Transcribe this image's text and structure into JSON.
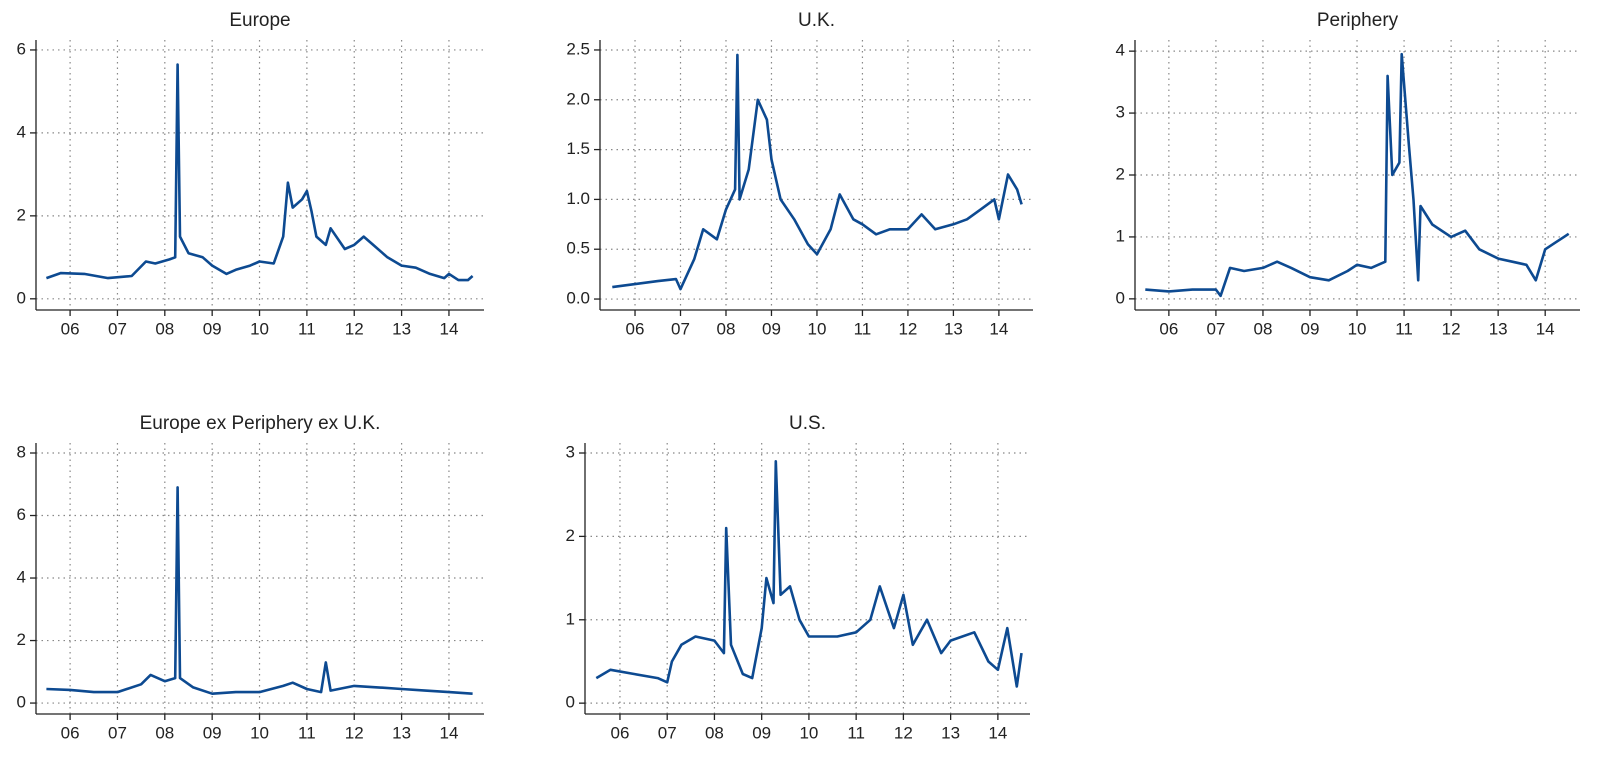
{
  "chart_data": [
    {
      "type": "line",
      "title": "Europe",
      "color": "#0d4a91",
      "grid": true,
      "xlim": [
        5.28,
        14.74
      ],
      "ylim": [
        -0.27,
        6.24
      ],
      "xticks": [
        {
          "value": 6,
          "label": "06"
        },
        {
          "value": 7,
          "label": "07"
        },
        {
          "value": 8,
          "label": "08"
        },
        {
          "value": 9,
          "label": "09"
        },
        10,
        11,
        12,
        13,
        14
      ],
      "yticks": [
        0,
        2,
        4,
        6
      ],
      "x": [
        5.5,
        5.8,
        6.3,
        6.8,
        7.3,
        7.6,
        7.8,
        8.1,
        8.22,
        8.27,
        8.32,
        8.5,
        8.8,
        9.0,
        9.3,
        9.5,
        9.8,
        10.0,
        10.3,
        10.5,
        10.6,
        10.7,
        10.9,
        11.0,
        11.1,
        11.2,
        11.4,
        11.5,
        11.8,
        12.0,
        12.2,
        12.4,
        12.7,
        13.0,
        13.3,
        13.6,
        13.9,
        14.0,
        14.2,
        14.4,
        14.5
      ],
      "values": [
        0.5,
        0.62,
        0.6,
        0.5,
        0.55,
        0.9,
        0.85,
        0.95,
        1.0,
        5.65,
        1.5,
        1.1,
        1.0,
        0.8,
        0.6,
        0.7,
        0.8,
        0.9,
        0.85,
        1.5,
        2.8,
        2.2,
        2.4,
        2.6,
        2.1,
        1.5,
        1.3,
        1.7,
        1.2,
        1.3,
        1.5,
        1.3,
        1.0,
        0.8,
        0.75,
        0.6,
        0.5,
        0.6,
        0.45,
        0.45,
        0.55
      ]
    },
    {
      "type": "line",
      "title": "U.K.",
      "color": "#0d4a91",
      "grid": true,
      "xlim": [
        5.23,
        14.75
      ],
      "ylim": [
        -0.11,
        2.6
      ],
      "xticks": [
        {
          "value": 6,
          "label": "06"
        },
        {
          "value": 7,
          "label": "07"
        },
        {
          "value": 8,
          "label": "08"
        },
        {
          "value": 9,
          "label": "09"
        },
        10,
        11,
        12,
        13,
        14
      ],
      "yticks": [
        {
          "value": 0,
          "label": "0.0"
        },
        0.5,
        {
          "value": 1,
          "label": "1.0"
        },
        1.5,
        {
          "value": 2,
          "label": "2.0"
        },
        2.5
      ],
      "x": [
        5.5,
        6.0,
        6.5,
        6.9,
        7.0,
        7.3,
        7.5,
        7.8,
        8.0,
        8.2,
        8.25,
        8.3,
        8.5,
        8.7,
        8.9,
        9.0,
        9.2,
        9.5,
        9.8,
        10.0,
        10.3,
        10.5,
        10.8,
        11.0,
        11.3,
        11.6,
        12.0,
        12.3,
        12.6,
        13.0,
        13.3,
        13.6,
        13.9,
        14.0,
        14.2,
        14.4,
        14.5
      ],
      "values": [
        0.12,
        0.15,
        0.18,
        0.2,
        0.1,
        0.4,
        0.7,
        0.6,
        0.9,
        1.1,
        2.45,
        1.0,
        1.3,
        2.0,
        1.8,
        1.4,
        1.0,
        0.8,
        0.55,
        0.45,
        0.7,
        1.05,
        0.8,
        0.75,
        0.65,
        0.7,
        0.7,
        0.85,
        0.7,
        0.75,
        0.8,
        0.9,
        1.0,
        0.8,
        1.25,
        1.1,
        0.95
      ]
    },
    {
      "type": "line",
      "title": "Periphery",
      "color": "#0d4a91",
      "grid": true,
      "xlim": [
        5.28,
        14.74
      ],
      "ylim": [
        -0.18,
        4.18
      ],
      "xticks": [
        {
          "value": 6,
          "label": "06"
        },
        {
          "value": 7,
          "label": "07"
        },
        {
          "value": 8,
          "label": "08"
        },
        {
          "value": 9,
          "label": "09"
        },
        10,
        11,
        12,
        13,
        14
      ],
      "yticks": [
        0,
        1,
        2,
        3,
        4
      ],
      "x": [
        5.5,
        6.0,
        6.5,
        7.0,
        7.1,
        7.3,
        7.6,
        8.0,
        8.3,
        8.6,
        9.0,
        9.4,
        9.8,
        10.0,
        10.3,
        10.6,
        10.65,
        10.75,
        10.9,
        10.95,
        11.1,
        11.2,
        11.3,
        11.35,
        11.6,
        12.0,
        12.3,
        12.6,
        13.0,
        13.3,
        13.6,
        13.8,
        14.0,
        14.2,
        14.4,
        14.5
      ],
      "values": [
        0.15,
        0.12,
        0.15,
        0.15,
        0.05,
        0.5,
        0.45,
        0.5,
        0.6,
        0.5,
        0.35,
        0.3,
        0.45,
        0.55,
        0.5,
        0.6,
        3.6,
        2.0,
        2.2,
        3.95,
        2.5,
        1.6,
        0.3,
        1.5,
        1.2,
        1.0,
        1.1,
        0.8,
        0.65,
        0.6,
        0.55,
        0.3,
        0.8,
        0.9,
        1.0,
        1.05
      ]
    },
    {
      "type": "line",
      "title": "Europe ex Periphery ex U.K.",
      "color": "#0d4a91",
      "grid": true,
      "xlim": [
        5.28,
        14.74
      ],
      "ylim": [
        -0.35,
        8.32
      ],
      "xticks": [
        {
          "value": 6,
          "label": "06"
        },
        {
          "value": 7,
          "label": "07"
        },
        {
          "value": 8,
          "label": "08"
        },
        {
          "value": 9,
          "label": "09"
        },
        10,
        11,
        12,
        13,
        14
      ],
      "yticks": [
        0,
        2,
        4,
        6,
        8
      ],
      "x": [
        5.5,
        6.0,
        6.5,
        7.0,
        7.5,
        7.7,
        8.0,
        8.22,
        8.27,
        8.32,
        8.6,
        9.0,
        9.5,
        10.0,
        10.5,
        10.7,
        11.0,
        11.3,
        11.4,
        11.5,
        12.0,
        12.5,
        13.0,
        13.5,
        14.0,
        14.5
      ],
      "values": [
        0.45,
        0.42,
        0.35,
        0.35,
        0.6,
        0.9,
        0.7,
        0.8,
        6.9,
        0.8,
        0.5,
        0.3,
        0.35,
        0.35,
        0.55,
        0.65,
        0.45,
        0.35,
        1.3,
        0.4,
        0.55,
        0.5,
        0.45,
        0.4,
        0.35,
        0.3
      ]
    },
    {
      "type": "line",
      "title": "U.S.",
      "color": "#0d4a91",
      "grid": true,
      "xlim": [
        5.26,
        14.68
      ],
      "ylim": [
        -0.13,
        3.12
      ],
      "xticks": [
        {
          "value": 6,
          "label": "06"
        },
        {
          "value": 7,
          "label": "07"
        },
        {
          "value": 8,
          "label": "08"
        },
        {
          "value": 9,
          "label": "09"
        },
        10,
        11,
        12,
        13,
        14
      ],
      "yticks": [
        0,
        1,
        2,
        3
      ],
      "x": [
        5.5,
        5.8,
        6.3,
        6.8,
        7.0,
        7.1,
        7.3,
        7.6,
        8.0,
        8.2,
        8.25,
        8.35,
        8.6,
        8.8,
        9.0,
        9.1,
        9.25,
        9.3,
        9.4,
        9.6,
        9.8,
        10.0,
        10.3,
        10.6,
        11.0,
        11.3,
        11.5,
        11.8,
        12.0,
        12.2,
        12.5,
        12.8,
        13.0,
        13.5,
        13.8,
        14.0,
        14.2,
        14.4,
        14.5
      ],
      "values": [
        0.3,
        0.4,
        0.35,
        0.3,
        0.25,
        0.5,
        0.7,
        0.8,
        0.75,
        0.6,
        2.1,
        0.7,
        0.35,
        0.3,
        0.9,
        1.5,
        1.2,
        2.9,
        1.3,
        1.4,
        1.0,
        0.8,
        0.8,
        0.8,
        0.85,
        1.0,
        1.4,
        0.9,
        1.3,
        0.7,
        1.0,
        0.6,
        0.75,
        0.85,
        0.5,
        0.4,
        0.9,
        0.2,
        0.6
      ]
    }
  ]
}
